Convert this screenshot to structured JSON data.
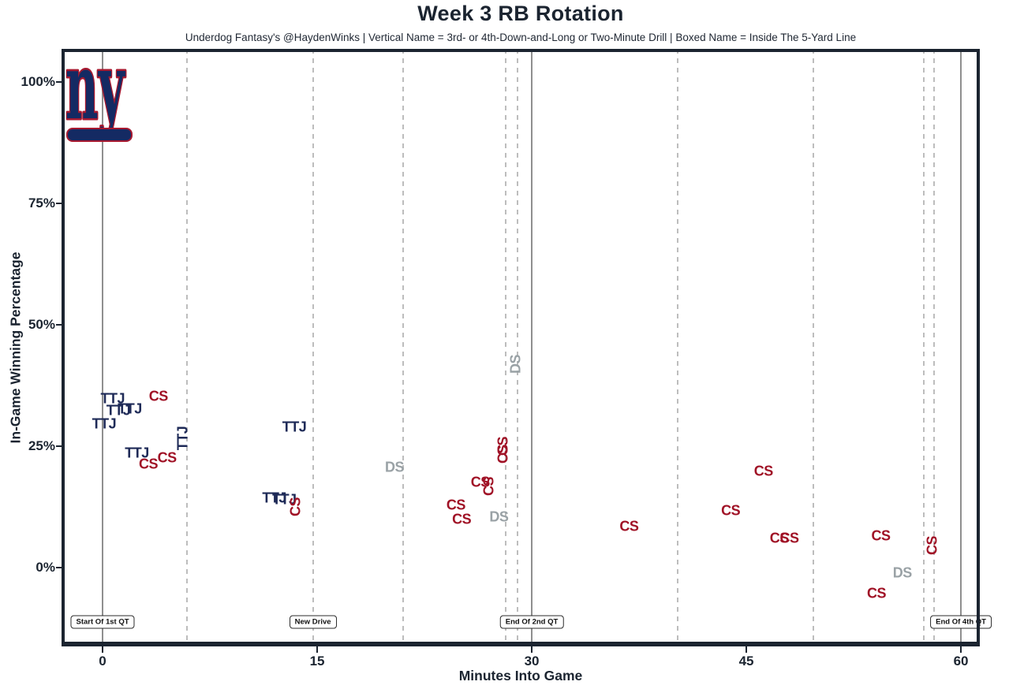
{
  "header": {
    "title": "Week 3 RB Rotation",
    "subtitle": "Underdog Fantasy's @HaydenWinks | Vertical Name = 3rd- or 4th-Down-and-Long or Two-Minute Drill | Boxed Name = Inside The 5-Yard Line"
  },
  "logo": {
    "team": "New York Giants",
    "text": "ny",
    "fill": "#142a63",
    "stroke": "#a71930"
  },
  "chart_data": {
    "type": "scatter",
    "title": "Week 3 RB Rotation",
    "xlabel": "Minutes Into Game",
    "ylabel": "In-Game Winning Percentage",
    "xlim": [
      -2.87,
      61.32
    ],
    "ylim": [
      -16.23,
      106.82
    ],
    "grid": false,
    "x_ticks": [
      {
        "value": 0,
        "label": "0"
      },
      {
        "value": 15,
        "label": "15"
      },
      {
        "value": 30,
        "label": "30"
      },
      {
        "value": 45,
        "label": "45"
      },
      {
        "value": 60,
        "label": "60"
      }
    ],
    "y_ticks": [
      {
        "value": 0,
        "label": "0%"
      },
      {
        "value": 25,
        "label": "25%"
      },
      {
        "value": 50,
        "label": "50%"
      },
      {
        "value": 75,
        "label": "75%"
      },
      {
        "value": 100,
        "label": "100%"
      }
    ],
    "players": [
      {
        "code": "TTJ",
        "color": "#1e2a57"
      },
      {
        "code": "CS",
        "color": "#a01226"
      },
      {
        "code": "DS",
        "color": "#9aa2a6"
      }
    ],
    "points": [
      {
        "label": "TTJ",
        "minute": 0.7,
        "win_pct": 34.7,
        "vertical": false
      },
      {
        "label": "TTJ",
        "minute": 1.1,
        "win_pct": 32.3,
        "vertical": false
      },
      {
        "label": "TTJ",
        "minute": 1.9,
        "win_pct": 32.6,
        "vertical": false
      },
      {
        "label": "TTJ",
        "minute": 0.1,
        "win_pct": 29.5,
        "vertical": false
      },
      {
        "label": "TTJ",
        "minute": 2.4,
        "win_pct": 23.5,
        "vertical": false
      },
      {
        "label": "TTJ",
        "minute": 5.6,
        "win_pct": 26.6,
        "vertical": true
      },
      {
        "label": "TTJ",
        "minute": 13.4,
        "win_pct": 28.9,
        "vertical": false
      },
      {
        "label": "TTJ",
        "minute": 12.0,
        "win_pct": 14.3,
        "vertical": false
      },
      {
        "label": "TTJ",
        "minute": 12.7,
        "win_pct": 14.0,
        "vertical": false
      },
      {
        "label": "CS",
        "minute": 3.9,
        "win_pct": 35.2,
        "vertical": false
      },
      {
        "label": "CS",
        "minute": 3.2,
        "win_pct": 21.3,
        "vertical": false
      },
      {
        "label": "CS",
        "minute": 4.5,
        "win_pct": 22.6,
        "vertical": false
      },
      {
        "label": "CS",
        "minute": 13.5,
        "win_pct": 12.5,
        "vertical": true
      },
      {
        "label": "CS",
        "minute": 26.4,
        "win_pct": 17.5,
        "vertical": false
      },
      {
        "label": "CS",
        "minute": 27.0,
        "win_pct": 16.7,
        "vertical": true
      },
      {
        "label": "CS",
        "minute": 24.7,
        "win_pct": 12.8,
        "vertical": false
      },
      {
        "label": "CS",
        "minute": 25.1,
        "win_pct": 9.9,
        "vertical": false
      },
      {
        "label": "CS",
        "minute": 28.0,
        "win_pct": 25.0,
        "vertical": true
      },
      {
        "label": "CS",
        "minute": 28.0,
        "win_pct": 23.4,
        "vertical": true
      },
      {
        "label": "CS",
        "minute": 36.8,
        "win_pct": 8.4,
        "vertical": false
      },
      {
        "label": "CS",
        "minute": 43.9,
        "win_pct": 11.7,
        "vertical": false
      },
      {
        "label": "CS",
        "minute": 46.2,
        "win_pct": 19.8,
        "vertical": false
      },
      {
        "label": "CS",
        "minute": 47.3,
        "win_pct": 6.0,
        "vertical": false
      },
      {
        "label": "CS",
        "minute": 48.0,
        "win_pct": 6.0,
        "vertical": false
      },
      {
        "label": "CS",
        "minute": 54.4,
        "win_pct": 6.5,
        "vertical": false
      },
      {
        "label": "CS",
        "minute": 54.1,
        "win_pct": -5.4,
        "vertical": false
      },
      {
        "label": "CS",
        "minute": 58.0,
        "win_pct": 4.5,
        "vertical": true
      },
      {
        "label": "DS",
        "minute": 20.4,
        "win_pct": 20.6,
        "vertical": false
      },
      {
        "label": "DS",
        "minute": 27.7,
        "win_pct": 10.4,
        "vertical": false
      },
      {
        "label": "DS",
        "minute": 28.9,
        "win_pct": 41.9,
        "vertical": true
      },
      {
        "label": "DS",
        "minute": 55.9,
        "win_pct": -1.1,
        "vertical": false
      }
    ],
    "event_lines": {
      "solid_minutes": [
        0,
        30,
        60
      ],
      "dashed_minutes": [
        5.9,
        14.7,
        21.0,
        28.2,
        29.0,
        40.2,
        49.7,
        57.4,
        58.1
      ]
    },
    "annotations": [
      {
        "text": "Start Of 1st QT",
        "minute": 0,
        "win_pct": -11.2
      },
      {
        "text": "New Drive",
        "minute": 14.7,
        "win_pct": -11.2
      },
      {
        "text": "End Of 2nd QT",
        "minute": 30,
        "win_pct": -11.2
      },
      {
        "text": "End Of 4th QT",
        "minute": 60,
        "win_pct": -11.2
      }
    ]
  }
}
